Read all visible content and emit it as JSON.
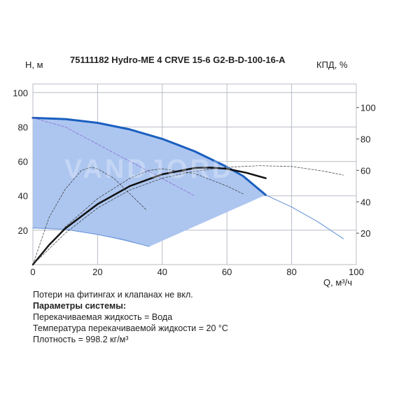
{
  "title": "75111182 Hydro-ME 4 CRVE 15-6 G2-B-D-100-16-A",
  "watermark": "VANDJORD",
  "watermark_mark": "®",
  "notes": {
    "line1": "Потери на фитингах и клапанах не вкл.",
    "line2": "Параметры системы:",
    "line3": "Перекачиваемая жидкость = Вода",
    "line4": "Температура перекачиваемой жидкости = 20 °C",
    "line5": "Плотность = 998.2 кг/м³"
  },
  "colors": {
    "grid": "#b8bcc6",
    "area": "#a9c3ef",
    "pump_curve": "#1a5fbf",
    "thin_curve": "#5f8fd6",
    "efficiency": "#111111"
  },
  "chart_data": {
    "type": "line",
    "xlabel": "Q, м³/ч",
    "ylabel_left": "H, м",
    "ylabel_right": "КПД, %",
    "xlim": [
      0,
      100
    ],
    "ylim_left": [
      0,
      105
    ],
    "ylim_right": [
      0,
      115
    ],
    "x_ticks": [
      "0",
      "20",
      "40",
      "60",
      "80",
      "100"
    ],
    "y_left_ticks": [
      "20",
      "40",
      "60",
      "80",
      "100"
    ],
    "y_right_ticks": [
      "20",
      "40",
      "60",
      "80",
      "100"
    ],
    "grid": true,
    "operating_area": {
      "x": [
        0,
        10,
        20,
        30,
        40,
        50,
        60,
        65,
        72,
        36,
        20,
        10,
        0
      ],
      "y": [
        85.3,
        84.6,
        82.4,
        78.6,
        73.1,
        65.9,
        56.8,
        51.5,
        40.5,
        10.5,
        17.5,
        20.5,
        21.3
      ]
    },
    "series": [
      {
        "name": "",
        "axis": "left",
        "style": "thick",
        "x": [
          0,
          10,
          20,
          30,
          40,
          50,
          60,
          65,
          72
        ],
        "y": [
          85.3,
          84.6,
          82.4,
          78.6,
          73.1,
          65.9,
          56.8,
          51.5,
          40.5
        ]
      },
      {
        "name": "",
        "axis": "left",
        "style": "thin",
        "x": [
          72,
          80,
          88,
          96
        ],
        "y": [
          40.5,
          33.5,
          25.0,
          15.0
        ]
      },
      {
        "name": "",
        "axis": "left",
        "style": "thin",
        "x": [
          0,
          10,
          20,
          28,
          36
        ],
        "y": [
          21.3,
          20.5,
          17.5,
          14.5,
          10.5
        ]
      },
      {
        "name": "",
        "axis": "left",
        "style": "thin-purple",
        "x": [
          0,
          10,
          20,
          30,
          40,
          50
        ],
        "y": [
          85.3,
          80.0,
          70.0,
          60.0,
          50.0,
          40.0
        ]
      },
      {
        "name": "",
        "axis": "right",
        "style": "efficiency",
        "x": [
          0,
          5,
          10,
          20,
          30,
          40,
          50,
          55,
          60,
          66,
          72
        ],
        "y": [
          0,
          12.5,
          23.0,
          38.5,
          50.0,
          57.5,
          61.5,
          61.8,
          61.0,
          58.5,
          55.0
        ]
      },
      {
        "name": "",
        "axis": "right",
        "style": "thin-efficiency",
        "x": [
          0,
          10,
          20,
          30,
          40,
          50,
          60,
          70,
          80,
          90,
          96
        ],
        "y": [
          0,
          20.0,
          36.0,
          47.5,
          55.0,
          59.5,
          62.0,
          63.0,
          62.5,
          59.5,
          57.0
        ]
      },
      {
        "name": "",
        "axis": "right",
        "style": "thin-efficiency",
        "x": [
          0,
          5,
          10,
          15,
          18,
          20,
          25,
          30,
          35
        ],
        "y": [
          0,
          30.0,
          48.0,
          60.0,
          62.0,
          61.0,
          55.0,
          45.0,
          35.0
        ]
      },
      {
        "name": "",
        "axis": "right",
        "style": "thin-efficiency",
        "x": [
          0,
          10,
          20,
          30,
          36,
          40,
          50,
          60,
          65
        ],
        "y": [
          0,
          24.0,
          42.0,
          55.0,
          60.0,
          61.0,
          58.0,
          50.0,
          45.0
        ]
      }
    ]
  }
}
